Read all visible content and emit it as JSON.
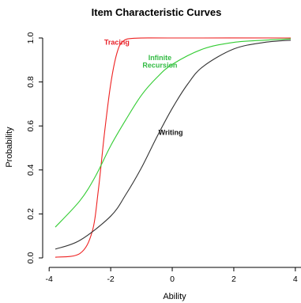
{
  "chart_data": {
    "type": "line",
    "title": "Item Characteristic Curves",
    "xlabel": "Ability",
    "ylabel": "Probability",
    "xlim": [
      -4,
      4
    ],
    "ylim": [
      0,
      1
    ],
    "x_ticks": [
      -4,
      -2,
      0,
      2,
      4
    ],
    "x_tick_labels": [
      "-4",
      "-2",
      "0",
      "2",
      "4"
    ],
    "y_ticks": [
      0.0,
      0.2,
      0.4,
      0.6,
      0.8,
      1.0
    ],
    "y_tick_labels": [
      "0.0",
      "0.2",
      "0.4",
      "0.6",
      "0.8",
      "1.0"
    ],
    "grid": false,
    "x_range_plotted": [
      -3.8,
      3.85
    ],
    "series": [
      {
        "name": "Tracing",
        "color": "#ee2222",
        "label_color": "#e8222a",
        "label_at": [
          -1.8,
          0.97
        ],
        "x": [
          -3.8,
          -3.0,
          -2.6,
          -2.4,
          -2.2,
          -2.0,
          -1.8,
          -1.6,
          -1.2,
          0.0,
          3.85
        ],
        "y": [
          0.003,
          0.02,
          0.12,
          0.31,
          0.57,
          0.79,
          0.93,
          0.985,
          0.999,
          1.0,
          1.0
        ]
      },
      {
        "name": "Infinite\nRecursion",
        "color": "#33cc33",
        "label_color": "#33bb44",
        "label_at": [
          -0.4,
          0.9
        ],
        "x": [
          -3.8,
          -3.0,
          -2.5,
          -2.0,
          -1.5,
          -1.0,
          -0.5,
          0.0,
          1.0,
          2.0,
          3.0,
          3.85
        ],
        "y": [
          0.14,
          0.26,
          0.37,
          0.51,
          0.63,
          0.74,
          0.82,
          0.88,
          0.95,
          0.98,
          0.99,
          0.996
        ]
      },
      {
        "name": "Writing",
        "color": "#333333",
        "label_color": "#111111",
        "label_at": [
          -0.05,
          0.56
        ],
        "x": [
          -3.8,
          -3.0,
          -2.0,
          -1.5,
          -1.0,
          -0.5,
          0.0,
          0.5,
          1.0,
          2.0,
          3.0,
          3.85
        ],
        "y": [
          0.04,
          0.08,
          0.19,
          0.29,
          0.41,
          0.55,
          0.68,
          0.79,
          0.87,
          0.95,
          0.98,
          0.99
        ]
      }
    ]
  }
}
